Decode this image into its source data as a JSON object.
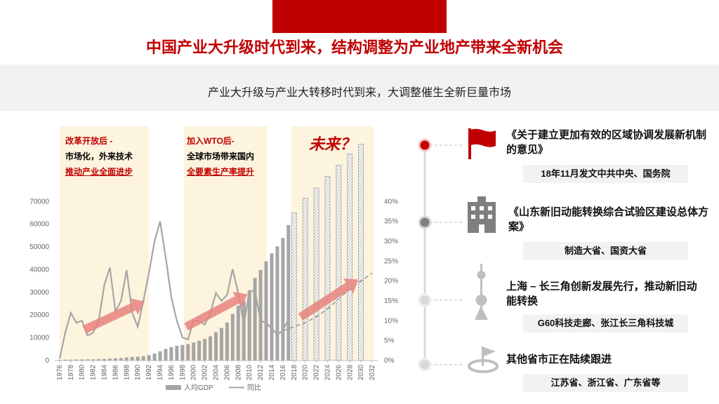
{
  "header": {
    "title": "中国产业大升级时代到来，结构调整为产业地产带来全新机会",
    "subtitle": "产业大升级与产业大转移时代到来，大调整催生全新巨量市场"
  },
  "annotations": [
    {
      "heading": "改革开放后 -",
      "line1": "市场化，外来技术",
      "line2": "推动产业全面进步"
    },
    {
      "heading": "加入WTO后-",
      "line1": "全球市场带来国内",
      "line2": "全要素生产率提升"
    },
    {
      "heading": "未来？"
    }
  ],
  "timeline": [
    {
      "title": "《关于建立更加有效的区域协调发展新机制的意见》",
      "detail": "18年11月发文中共中央、国务院"
    },
    {
      "title": "《山东新旧动能转换综合试验区建设总体方案》",
      "detail": "制造大省、国资大省"
    },
    {
      "title": "上海 – 长三角创新发展先行，推动新旧动能转换",
      "detail": "G60科技走廊、张江长三角科技城"
    },
    {
      "title": "其他省市正在陆续跟进",
      "detail": "江苏省、浙江省、广东省等"
    }
  ],
  "chart_data": {
    "type": "bar",
    "xlim": [
      1975,
      2033
    ],
    "xticks": [
      1976,
      1978,
      1980,
      1982,
      1984,
      1986,
      1988,
      1990,
      1992,
      1994,
      1996,
      1998,
      2000,
      2002,
      2004,
      2006,
      2008,
      2010,
      2012,
      2014,
      2016,
      2018,
      2020,
      2022,
      2024,
      2026,
      2028,
      2030,
      2032
    ],
    "ylim": [
      0,
      105000
    ],
    "yticks": [
      0,
      10000,
      20000,
      30000,
      40000,
      50000,
      60000,
      70000
    ],
    "y2lim": [
      0,
      60
    ],
    "y2ticks": [
      {
        "value": 0,
        "label": "0%"
      },
      {
        "value": 5,
        "label": "5%"
      },
      {
        "value": 10,
        "label": "10%"
      },
      {
        "value": 15,
        "label": "15%"
      },
      {
        "value": 20,
        "label": "20%"
      },
      {
        "value": 25,
        "label": "25%"
      },
      {
        "value": 30,
        "label": "30%"
      },
      {
        "value": 35,
        "label": "35%"
      },
      {
        "value": 40,
        "label": "40%"
      }
    ],
    "series": [
      {
        "name": "人均GDP",
        "type": "bar",
        "color": "#a6a6a6",
        "x": [
          1976,
          1977,
          1978,
          1979,
          1980,
          1981,
          1982,
          1983,
          1984,
          1985,
          1986,
          1987,
          1988,
          1989,
          1990,
          1991,
          1992,
          1993,
          1994,
          1995,
          1996,
          1997,
          1998,
          1999,
          2000,
          2001,
          2002,
          2003,
          2004,
          2005,
          2006,
          2007,
          2008,
          2009,
          2010,
          2011,
          2012,
          2013,
          2014,
          2015,
          2016,
          2017
        ],
        "values": [
          316,
          341,
          385,
          423,
          468,
          497,
          533,
          588,
          702,
          866,
          973,
          1123,
          1378,
          1536,
          1663,
          1912,
          2334,
          3027,
          4081,
          5091,
          5898,
          6481,
          6860,
          7229,
          7942,
          8717,
          9506,
          10666,
          12487,
          14368,
          16738,
          20494,
          24100,
          26180,
          30808,
          36302,
          39874,
          43684,
          47173,
          50237,
          53980,
          59660
        ]
      },
      {
        "type": "bar",
        "color": "#a6a6a6",
        "pattern": "hatched",
        "x": [
          2018,
          2020,
          2022,
          2024,
          2026,
          2028,
          2030
        ],
        "values": [
          65000,
          71500,
          76000,
          81000,
          86000,
          91000,
          95300
        ]
      },
      {
        "name": "同比",
        "type": "line",
        "axis": "y2",
        "color": "#a6a6a6",
        "x": [
          1976,
          1977,
          1978,
          1979,
          1980,
          1981,
          1982,
          1983,
          1984,
          1985,
          1986,
          1987,
          1988,
          1989,
          1990,
          1991,
          1992,
          1993,
          1994,
          1995,
          1996,
          1997,
          1998,
          1999,
          2000,
          2001,
          2002,
          2003,
          2004,
          2005,
          2006,
          2007,
          2008,
          2009,
          2010,
          2011,
          2012,
          2013,
          2014,
          2015,
          2016,
          2017
        ],
        "values": [
          0.5,
          7,
          12,
          9.5,
          10,
          6.3,
          7,
          10,
          19,
          23.4,
          12.3,
          15,
          22.7,
          12,
          8.5,
          15,
          22,
          30,
          35,
          26,
          16,
          10,
          5.8,
          5.3,
          10,
          10,
          9,
          12,
          17,
          15,
          16.5,
          23,
          17,
          9,
          17.5,
          17.5,
          10,
          9.5,
          8,
          6.5,
          7.5,
          10.5
        ]
      },
      {
        "type": "line",
        "axis": "y2",
        "color": "#a6a6a6",
        "dashed": true,
        "x": [
          2016,
          2018,
          2020,
          2022,
          2024,
          2026,
          2028,
          2030,
          2032
        ],
        "values": [
          7.5,
          8.5,
          9.5,
          11,
          13,
          15.5,
          18,
          20,
          22
        ]
      }
    ]
  }
}
